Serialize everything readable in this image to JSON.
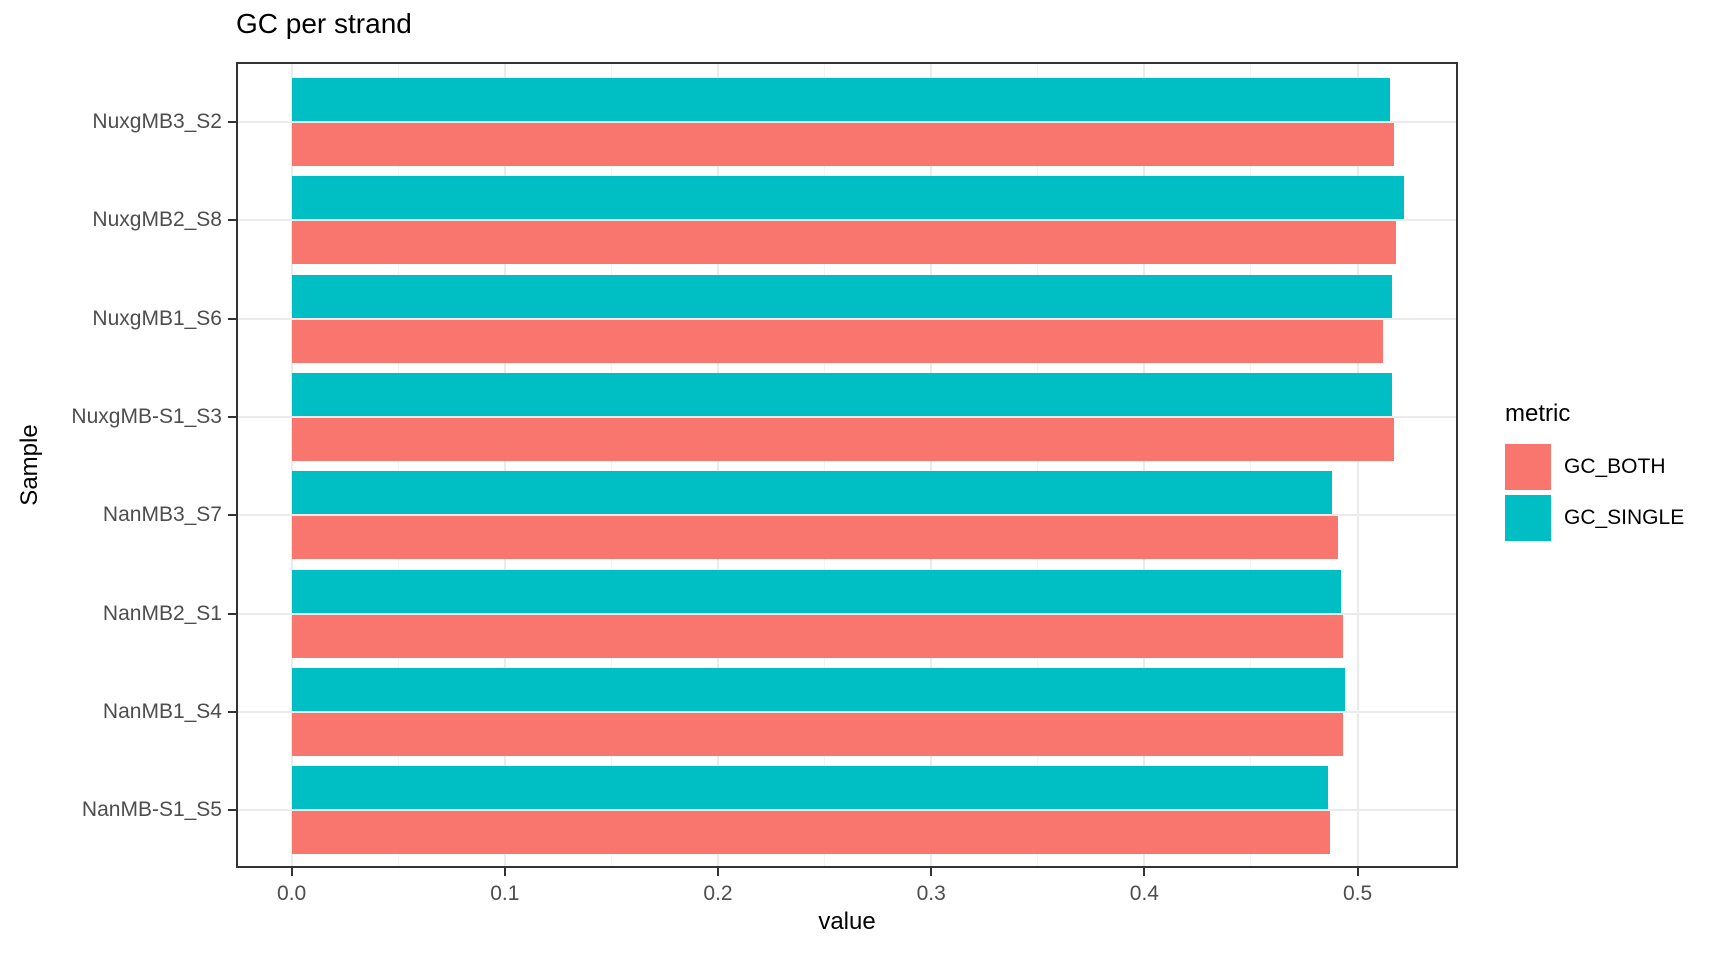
{
  "title": "GC per strand",
  "legend": {
    "title": "metric",
    "items": [
      {
        "label": "GC_BOTH",
        "color": "#F8766D"
      },
      {
        "label": "GC_SINGLE",
        "color": "#00BFC4"
      }
    ]
  },
  "colors": {
    "gc_both": "#F8766D",
    "gc_single": "#00BFC4",
    "panel_border": "#333333",
    "grid_major": "#EBEBEB",
    "grid_minor": "#F4F4F4",
    "tick_label": "#4D4D4D"
  },
  "chart_data": {
    "type": "bar",
    "orientation": "horizontal",
    "title": "GC per strand",
    "xlabel": "value",
    "ylabel": "Sample",
    "categories": [
      "NuxgMB3_S2",
      "NuxgMB2_S8",
      "NuxgMB1_S6",
      "NuxgMB-S1_S3",
      "NanMB3_S7",
      "NanMB2_S1",
      "NanMB1_S4",
      "NanMB-S1_S5"
    ],
    "categories_order": "top_to_bottom",
    "series": [
      {
        "name": "GC_SINGLE",
        "color": "#00BFC4",
        "position_in_group": "top",
        "values": [
          0.515,
          0.522,
          0.516,
          0.516,
          0.488,
          0.492,
          0.494,
          0.486
        ]
      },
      {
        "name": "GC_BOTH",
        "color": "#F8766D",
        "position_in_group": "bottom",
        "values": [
          0.517,
          0.518,
          0.512,
          0.517,
          0.491,
          0.493,
          0.493,
          0.487
        ]
      }
    ],
    "x_ticks": [
      0.0,
      0.1,
      0.2,
      0.3,
      0.4,
      0.5
    ],
    "x_tick_labels": [
      "0.0",
      "0.1",
      "0.2",
      "0.3",
      "0.4",
      "0.5"
    ],
    "x_minor_ticks": [
      0.05,
      0.15,
      0.25,
      0.35,
      0.45
    ],
    "xlim": [
      -0.0261,
      0.5471
    ],
    "grid": true,
    "legend_position": "right",
    "legend_title": "metric"
  }
}
